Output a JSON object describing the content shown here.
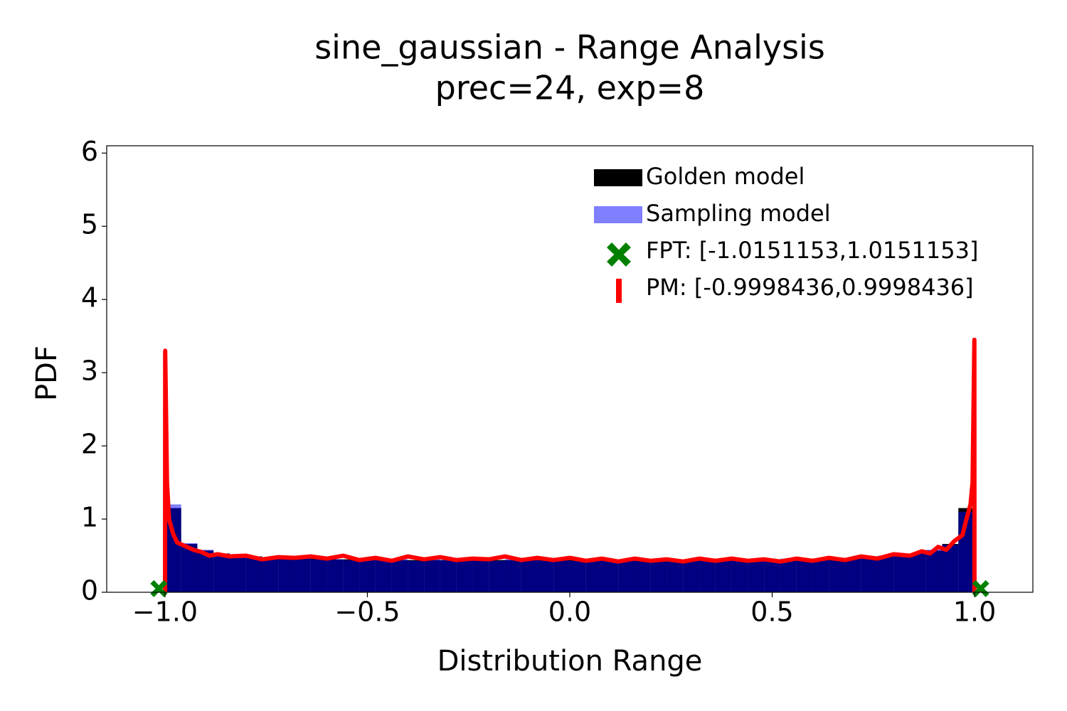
{
  "chart_data": {
    "type": "histogram",
    "title": "sine_gaussian - Range Analysis",
    "subtitle": "prec=24, exp=8",
    "x_label": "Distribution Range",
    "y_label": "PDF",
    "xlim": [
      -1.144,
      1.144
    ],
    "ylim": [
      0,
      6.1
    ],
    "xticks": [
      {
        "value": -1.0,
        "label": "−1.0"
      },
      {
        "value": -0.5,
        "label": "−0.5"
      },
      {
        "value": 0.0,
        "label": "0.0"
      },
      0.5,
      {
        "value": 1.0,
        "label": "1.0"
      }
    ],
    "yticks": [
      0,
      1,
      2,
      3,
      4,
      5,
      6
    ],
    "legend": "upper right",
    "bins": [
      -1,
      -0.96,
      -0.92,
      -0.88,
      -0.84,
      -0.8,
      -0.76,
      -0.72,
      -0.68,
      -0.64,
      -0.6,
      -0.56,
      -0.52,
      -0.48,
      -0.44,
      -0.4,
      -0.36,
      -0.32,
      -0.28,
      -0.24,
      -0.2,
      -0.16,
      -0.12,
      -0.08,
      -0.04,
      0,
      0.04,
      0.08,
      0.12,
      0.16,
      0.2,
      0.24,
      0.28,
      0.32,
      0.36,
      0.4,
      0.44,
      0.48,
      0.52,
      0.56,
      0.6,
      0.64,
      0.68,
      0.72,
      0.76,
      0.8,
      0.84,
      0.88,
      0.92,
      0.96,
      1
    ],
    "series": [
      {
        "name": "Golden model",
        "type": "histogram",
        "color": "#000000",
        "alpha": 1,
        "values": [
          1.15,
          0.66,
          0.57,
          0.53,
          0.51,
          0.49,
          0.48,
          0.47,
          0.46,
          0.46,
          0.45,
          0.45,
          0.45,
          0.44,
          0.44,
          0.44,
          0.44,
          0.44,
          0.44,
          0.44,
          0.44,
          0.44,
          0.44,
          0.44,
          0.44,
          0.44,
          0.44,
          0.44,
          0.44,
          0.44,
          0.44,
          0.44,
          0.44,
          0.44,
          0.44,
          0.44,
          0.44,
          0.45,
          0.45,
          0.45,
          0.46,
          0.46,
          0.47,
          0.48,
          0.49,
          0.51,
          0.53,
          0.57,
          0.66,
          1.15
        ]
      },
      {
        "name": "Sampling model",
        "type": "histogram",
        "color": "#0000ff",
        "alpha": 0.5,
        "values": [
          1.2,
          0.67,
          0.58,
          0.52,
          0.5,
          0.49,
          0.48,
          0.46,
          0.47,
          0.45,
          0.45,
          0.44,
          0.46,
          0.44,
          0.45,
          0.43,
          0.45,
          0.44,
          0.45,
          0.44,
          0.43,
          0.45,
          0.44,
          0.44,
          0.45,
          0.43,
          0.44,
          0.45,
          0.44,
          0.44,
          0.45,
          0.43,
          0.44,
          0.45,
          0.44,
          0.44,
          0.45,
          0.44,
          0.46,
          0.45,
          0.46,
          0.47,
          0.46,
          0.48,
          0.5,
          0.52,
          0.53,
          0.58,
          0.65,
          1.1
        ]
      },
      {
        "name": "FPT: [-1.0151153,1.0151153]",
        "type": "scatter",
        "color": "#008000",
        "marker": "X",
        "x": [
          -1.0151153,
          1.0151153
        ],
        "values": [
          0.05,
          0.05
        ]
      },
      {
        "name": "PM: [-0.9998436,0.9998436]",
        "type": "line",
        "color": "#ff0000",
        "x": [
          -0.9998,
          -0.9995,
          -0.995,
          -0.99,
          -0.98,
          -0.97,
          -0.95,
          -0.93,
          -0.91,
          -0.89,
          -0.87,
          -0.84,
          -0.8,
          -0.76,
          -0.72,
          -0.68,
          -0.64,
          -0.6,
          -0.56,
          -0.52,
          -0.48,
          -0.44,
          -0.4,
          -0.36,
          -0.32,
          -0.28,
          -0.24,
          -0.2,
          -0.16,
          -0.12,
          -0.08,
          -0.04,
          0,
          0.04,
          0.08,
          0.12,
          0.16,
          0.2,
          0.24,
          0.28,
          0.32,
          0.36,
          0.4,
          0.44,
          0.48,
          0.52,
          0.56,
          0.6,
          0.64,
          0.68,
          0.72,
          0.76,
          0.8,
          0.84,
          0.87,
          0.89,
          0.91,
          0.93,
          0.95,
          0.97,
          0.98,
          0.99,
          0.995,
          0.9995,
          0.9998
        ],
        "values": [
          0,
          3.3,
          1.5,
          1.0,
          0.8,
          0.68,
          0.63,
          0.58,
          0.55,
          0.5,
          0.52,
          0.49,
          0.5,
          0.45,
          0.48,
          0.47,
          0.49,
          0.46,
          0.5,
          0.44,
          0.47,
          0.43,
          0.49,
          0.45,
          0.48,
          0.44,
          0.46,
          0.45,
          0.49,
          0.44,
          0.47,
          0.44,
          0.47,
          0.43,
          0.46,
          0.42,
          0.46,
          0.43,
          0.45,
          0.42,
          0.46,
          0.43,
          0.46,
          0.43,
          0.45,
          0.42,
          0.46,
          0.43,
          0.47,
          0.44,
          0.49,
          0.46,
          0.52,
          0.5,
          0.56,
          0.53,
          0.62,
          0.58,
          0.7,
          0.78,
          1.0,
          1.2,
          1.5,
          3.45,
          0
        ]
      }
    ]
  }
}
